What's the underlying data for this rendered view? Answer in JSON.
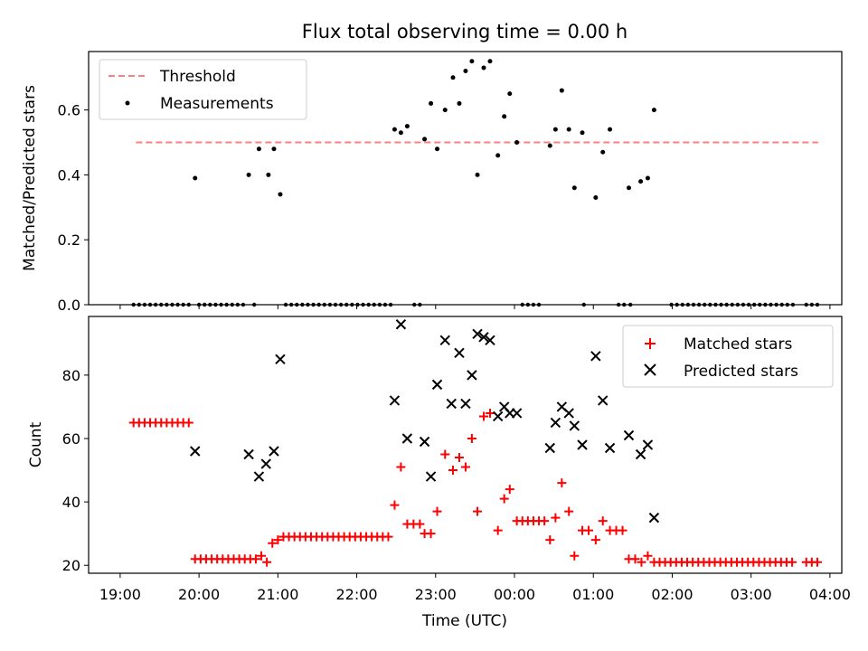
{
  "figure": {
    "title": "Flux total observing time = 0.00 h"
  },
  "chart_data": [
    {
      "type": "scatter",
      "panel": "top",
      "ylabel": "Matched/Predicted stars",
      "ylim": [
        0,
        0.78
      ],
      "yticks": [
        0.0,
        0.2,
        0.4,
        0.6
      ],
      "ytick_labels": [
        "0.0",
        "0.2",
        "0.4",
        "0.6"
      ],
      "threshold": 0.5,
      "threshold_x": [
        19.2,
        27.85
      ],
      "legend_position": "top-left",
      "legend": [
        "Threshold",
        "Measurements"
      ],
      "colors": {
        "threshold": "#ff7f7f",
        "measurements": "#000000"
      },
      "zero_x": [
        19.17,
        19.24,
        19.31,
        19.38,
        19.45,
        19.52,
        19.59,
        19.66,
        19.73,
        19.8,
        19.87,
        20.0,
        20.07,
        20.14,
        20.21,
        20.28,
        20.35,
        20.42,
        20.49,
        20.56,
        20.7,
        21.1,
        21.17,
        21.24,
        21.31,
        21.38,
        21.45,
        21.52,
        21.59,
        21.66,
        21.73,
        21.8,
        21.87,
        21.94,
        22.01,
        22.08,
        22.15,
        22.22,
        22.29,
        22.36,
        22.43,
        22.73,
        22.8,
        24.1,
        24.17,
        24.24,
        24.31,
        24.88,
        25.32,
        25.39,
        25.47,
        25.99,
        26.06,
        26.13,
        26.2,
        26.27,
        26.34,
        26.41,
        26.48,
        26.55,
        26.62,
        26.69,
        26.76,
        26.83,
        26.9,
        26.97,
        27.04,
        27.11,
        27.18,
        27.25,
        27.32,
        27.39,
        27.46,
        27.53,
        27.7,
        27.77,
        27.84
      ],
      "points": [
        [
          19.95,
          0.39
        ],
        [
          20.63,
          0.4
        ],
        [
          20.76,
          0.48
        ],
        [
          20.88,
          0.4
        ],
        [
          20.95,
          0.48
        ],
        [
          21.03,
          0.34
        ],
        [
          22.48,
          0.54
        ],
        [
          22.56,
          0.53
        ],
        [
          22.64,
          0.55
        ],
        [
          22.86,
          0.51
        ],
        [
          22.94,
          0.62
        ],
        [
          23.02,
          0.48
        ],
        [
          23.12,
          0.6
        ],
        [
          23.22,
          0.7
        ],
        [
          23.3,
          0.62
        ],
        [
          23.38,
          0.72
        ],
        [
          23.46,
          0.75
        ],
        [
          23.53,
          0.4
        ],
        [
          23.61,
          0.73
        ],
        [
          23.69,
          0.75
        ],
        [
          23.79,
          0.46
        ],
        [
          23.87,
          0.58
        ],
        [
          23.94,
          0.65
        ],
        [
          24.03,
          0.5
        ],
        [
          24.45,
          0.49
        ],
        [
          24.52,
          0.54
        ],
        [
          24.6,
          0.66
        ],
        [
          24.69,
          0.54
        ],
        [
          24.76,
          0.36
        ],
        [
          24.86,
          0.53
        ],
        [
          25.03,
          0.33
        ],
        [
          25.12,
          0.47
        ],
        [
          25.21,
          0.54
        ],
        [
          25.45,
          0.36
        ],
        [
          25.6,
          0.38
        ],
        [
          25.69,
          0.39
        ],
        [
          25.77,
          0.6
        ]
      ]
    },
    {
      "type": "scatter",
      "panel": "bottom",
      "xlabel": "Time (UTC)",
      "ylabel": "Count",
      "xlim": [
        18.6,
        28.15
      ],
      "ylim": [
        17.5,
        98.5
      ],
      "xticks": [
        19,
        20,
        21,
        22,
        23,
        24,
        25,
        26,
        27,
        28
      ],
      "xtick_labels": [
        "19:00",
        "20:00",
        "21:00",
        "22:00",
        "23:00",
        "00:00",
        "01:00",
        "02:00",
        "03:00",
        "04:00"
      ],
      "yticks": [
        20,
        40,
        60,
        80
      ],
      "ytick_labels": [
        "20",
        "40",
        "60",
        "80"
      ],
      "legend_position": "top-right",
      "legend": [
        "Matched stars",
        "Predicted stars"
      ],
      "colors": {
        "matched": "#ff0000",
        "predicted": "#000000"
      },
      "series": [
        {
          "name": "Matched stars",
          "points": [
            [
              19.17,
              65
            ],
            [
              19.24,
              65
            ],
            [
              19.31,
              65
            ],
            [
              19.38,
              65
            ],
            [
              19.45,
              65
            ],
            [
              19.52,
              65
            ],
            [
              19.59,
              65
            ],
            [
              19.66,
              65
            ],
            [
              19.73,
              65
            ],
            [
              19.8,
              65
            ],
            [
              19.87,
              65
            ],
            [
              19.95,
              22
            ],
            [
              20.02,
              22
            ],
            [
              20.09,
              22
            ],
            [
              20.16,
              22
            ],
            [
              20.23,
              22
            ],
            [
              20.3,
              22
            ],
            [
              20.37,
              22
            ],
            [
              20.44,
              22
            ],
            [
              20.51,
              22
            ],
            [
              20.58,
              22
            ],
            [
              20.65,
              22
            ],
            [
              20.72,
              22
            ],
            [
              20.79,
              23
            ],
            [
              20.86,
              21
            ],
            [
              20.93,
              27
            ],
            [
              21.0,
              28
            ],
            [
              21.07,
              29
            ],
            [
              21.14,
              29
            ],
            [
              21.21,
              29
            ],
            [
              21.28,
              29
            ],
            [
              21.35,
              29
            ],
            [
              21.42,
              29
            ],
            [
              21.49,
              29
            ],
            [
              21.56,
              29
            ],
            [
              21.63,
              29
            ],
            [
              21.7,
              29
            ],
            [
              21.77,
              29
            ],
            [
              21.84,
              29
            ],
            [
              21.91,
              29
            ],
            [
              21.98,
              29
            ],
            [
              22.05,
              29
            ],
            [
              22.12,
              29
            ],
            [
              22.19,
              29
            ],
            [
              22.26,
              29
            ],
            [
              22.33,
              29
            ],
            [
              22.4,
              29
            ],
            [
              22.48,
              39
            ],
            [
              22.56,
              51
            ],
            [
              22.64,
              33
            ],
            [
              22.72,
              33
            ],
            [
              22.8,
              33
            ],
            [
              22.86,
              30
            ],
            [
              22.94,
              30
            ],
            [
              23.02,
              37
            ],
            [
              23.12,
              55
            ],
            [
              23.22,
              50
            ],
            [
              23.3,
              54
            ],
            [
              23.38,
              51
            ],
            [
              23.46,
              60
            ],
            [
              23.53,
              37
            ],
            [
              23.61,
              67
            ],
            [
              23.69,
              68
            ],
            [
              23.79,
              31
            ],
            [
              23.87,
              41
            ],
            [
              23.94,
              44
            ],
            [
              24.03,
              34
            ],
            [
              24.1,
              34
            ],
            [
              24.17,
              34
            ],
            [
              24.24,
              34
            ],
            [
              24.31,
              34
            ],
            [
              24.38,
              34
            ],
            [
              24.45,
              28
            ],
            [
              24.52,
              35
            ],
            [
              24.6,
              46
            ],
            [
              24.69,
              37
            ],
            [
              24.76,
              23
            ],
            [
              24.86,
              31
            ],
            [
              24.94,
              31
            ],
            [
              25.03,
              28
            ],
            [
              25.12,
              34
            ],
            [
              25.21,
              31
            ],
            [
              25.29,
              31
            ],
            [
              25.37,
              31
            ],
            [
              25.45,
              22
            ],
            [
              25.53,
              22
            ],
            [
              25.61,
              21
            ],
            [
              25.69,
              23
            ],
            [
              25.77,
              21
            ],
            [
              25.84,
              21
            ],
            [
              25.91,
              21
            ],
            [
              25.98,
              21
            ],
            [
              26.05,
              21
            ],
            [
              26.12,
              21
            ],
            [
              26.19,
              21
            ],
            [
              26.26,
              21
            ],
            [
              26.33,
              21
            ],
            [
              26.4,
              21
            ],
            [
              26.47,
              21
            ],
            [
              26.54,
              21
            ],
            [
              26.61,
              21
            ],
            [
              26.68,
              21
            ],
            [
              26.75,
              21
            ],
            [
              26.82,
              21
            ],
            [
              26.89,
              21
            ],
            [
              26.96,
              21
            ],
            [
              27.03,
              21
            ],
            [
              27.1,
              21
            ],
            [
              27.17,
              21
            ],
            [
              27.24,
              21
            ],
            [
              27.31,
              21
            ],
            [
              27.38,
              21
            ],
            [
              27.45,
              21
            ],
            [
              27.52,
              21
            ],
            [
              27.7,
              21
            ],
            [
              27.77,
              21
            ],
            [
              27.84,
              21
            ]
          ]
        },
        {
          "name": "Predicted stars",
          "points": [
            [
              19.95,
              56
            ],
            [
              20.63,
              55
            ],
            [
              20.76,
              48
            ],
            [
              20.85,
              52
            ],
            [
              20.95,
              56
            ],
            [
              21.03,
              85
            ],
            [
              22.48,
              72
            ],
            [
              22.56,
              96
            ],
            [
              22.64,
              60
            ],
            [
              22.86,
              59
            ],
            [
              22.94,
              48
            ],
            [
              23.02,
              77
            ],
            [
              23.12,
              91
            ],
            [
              23.2,
              71
            ],
            [
              23.3,
              87
            ],
            [
              23.38,
              71
            ],
            [
              23.46,
              80
            ],
            [
              23.53,
              93
            ],
            [
              23.61,
              92
            ],
            [
              23.69,
              91
            ],
            [
              23.79,
              67
            ],
            [
              23.87,
              70
            ],
            [
              23.94,
              68
            ],
            [
              24.03,
              68
            ],
            [
              24.45,
              57
            ],
            [
              24.52,
              65
            ],
            [
              24.6,
              70
            ],
            [
              24.69,
              68
            ],
            [
              24.76,
              64
            ],
            [
              24.86,
              58
            ],
            [
              25.03,
              86
            ],
            [
              25.12,
              72
            ],
            [
              25.21,
              57
            ],
            [
              25.45,
              61
            ],
            [
              25.6,
              55
            ],
            [
              25.69,
              58
            ],
            [
              25.77,
              35
            ]
          ]
        }
      ]
    }
  ]
}
